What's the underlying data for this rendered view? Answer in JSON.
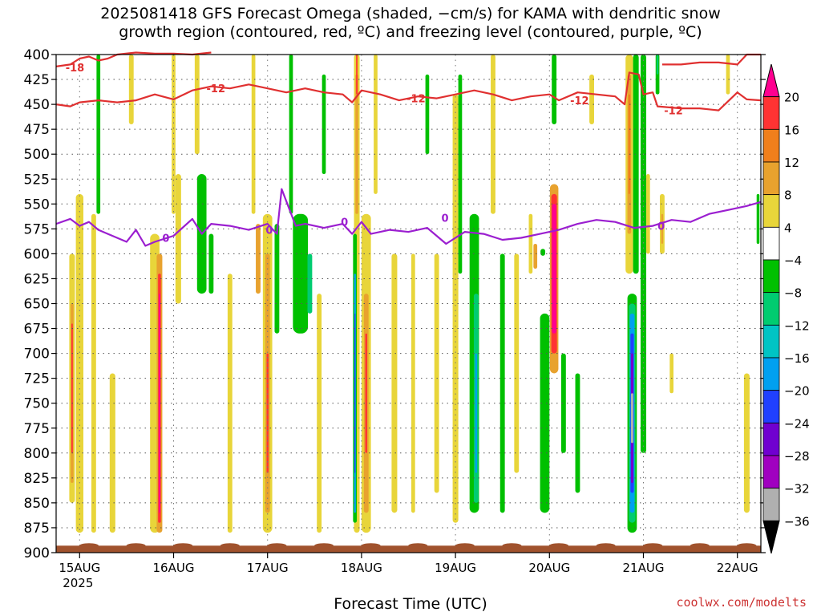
{
  "title": {
    "line1": "2025081418 GFS Forecast Omega (shaded, −cm/s) for KAMA with dendritic snow",
    "line2": "growth region (contoured, red, ºC) and freezing level (contoured, purple, ºC)"
  },
  "credit": "coolwx.com/modelts",
  "chart_data": {
    "type": "heatmap",
    "xlabel": "Forecast Time (UTC)",
    "ylabel": "",
    "x_ticks": [
      {
        "day": 15,
        "label": "15AUG",
        "sublabel": "2025"
      },
      {
        "day": 16,
        "label": "16AUG",
        "sublabel": ""
      },
      {
        "day": 17,
        "label": "17AUG",
        "sublabel": ""
      },
      {
        "day": 18,
        "label": "18AUG",
        "sublabel": ""
      },
      {
        "day": 19,
        "label": "19AUG",
        "sublabel": ""
      },
      {
        "day": 20,
        "label": "20AUG",
        "sublabel": ""
      },
      {
        "day": 21,
        "label": "21AUG",
        "sublabel": ""
      },
      {
        "day": 22,
        "label": "22AUG",
        "sublabel": ""
      }
    ],
    "xlim_days": [
      14.75,
      22.25
    ],
    "y_ticks": [
      400,
      425,
      450,
      475,
      500,
      525,
      550,
      575,
      600,
      625,
      650,
      675,
      700,
      725,
      750,
      775,
      800,
      825,
      850,
      875,
      900
    ],
    "ylim": [
      400,
      900
    ],
    "colorbar": {
      "labels": [
        "20",
        "16",
        "12",
        "8",
        "4",
        "−4",
        "−8",
        "−12",
        "−16",
        "−20",
        "−24",
        "−28",
        "−32",
        "−36"
      ],
      "segments": [
        "#ff0090",
        "#ff3333",
        "#f07f1c",
        "#e8a22e",
        "#e8d53a",
        "#ffffff",
        "#00c000",
        "#00cc70",
        "#00c4c4",
        "#00a0f0",
        "#2040ff",
        "#7000d0",
        "#a000c0",
        "#b0b0b0",
        "#000000"
      ]
    },
    "shading": [
      {
        "d": 15.0,
        "p1": 540,
        "p2": 880,
        "w": 0.08,
        "c": "#e8d53a"
      },
      {
        "d": 14.92,
        "p1": 600,
        "p2": 850,
        "w": 0.06,
        "c": "#e8d53a"
      },
      {
        "d": 14.92,
        "p1": 650,
        "p2": 830,
        "w": 0.03,
        "c": "#e8a22e"
      },
      {
        "d": 14.92,
        "p1": 670,
        "p2": 800,
        "w": 0.015,
        "c": "#ff3333"
      },
      {
        "d": 15.15,
        "p1": 560,
        "p2": 880,
        "w": 0.05,
        "c": "#e8d53a"
      },
      {
        "d": 15.35,
        "p1": 720,
        "p2": 880,
        "w": 0.06,
        "c": "#e8d53a"
      },
      {
        "d": 15.2,
        "p1": 400,
        "p2": 560,
        "w": 0.04,
        "c": "#00c000"
      },
      {
        "d": 15.55,
        "p1": 400,
        "p2": 470,
        "w": 0.05,
        "c": "#e8d53a"
      },
      {
        "d": 15.8,
        "p1": 580,
        "p2": 880,
        "w": 0.1,
        "c": "#e8d53a"
      },
      {
        "d": 15.85,
        "p1": 600,
        "p2": 880,
        "w": 0.06,
        "c": "#e8a22e"
      },
      {
        "d": 15.85,
        "p1": 620,
        "p2": 870,
        "w": 0.03,
        "c": "#ff3333"
      },
      {
        "d": 15.85,
        "p1": 640,
        "p2": 860,
        "w": 0.015,
        "c": "#ff0090"
      },
      {
        "d": 16.05,
        "p1": 520,
        "p2": 650,
        "w": 0.06,
        "c": "#e8d53a"
      },
      {
        "d": 16.3,
        "p1": 520,
        "p2": 640,
        "w": 0.1,
        "c": "#00c000"
      },
      {
        "d": 16.4,
        "p1": 580,
        "p2": 640,
        "w": 0.05,
        "c": "#00c000"
      },
      {
        "d": 16.25,
        "p1": 400,
        "p2": 500,
        "w": 0.05,
        "c": "#e8d53a"
      },
      {
        "d": 16.0,
        "p1": 400,
        "p2": 560,
        "w": 0.04,
        "c": "#e8d53a"
      },
      {
        "d": 16.6,
        "p1": 620,
        "p2": 880,
        "w": 0.05,
        "c": "#e8d53a"
      },
      {
        "d": 16.85,
        "p1": 400,
        "p2": 560,
        "w": 0.04,
        "c": "#e8d53a"
      },
      {
        "d": 17.0,
        "p1": 560,
        "p2": 880,
        "w": 0.1,
        "c": "#e8d53a"
      },
      {
        "d": 17.0,
        "p1": 600,
        "p2": 860,
        "w": 0.05,
        "c": "#e8a22e"
      },
      {
        "d": 17.0,
        "p1": 700,
        "p2": 820,
        "w": 0.02,
        "c": "#ff3333"
      },
      {
        "d": 16.9,
        "p1": 570,
        "p2": 640,
        "w": 0.05,
        "c": "#e8a22e"
      },
      {
        "d": 17.1,
        "p1": 570,
        "p2": 680,
        "w": 0.05,
        "c": "#00c000"
      },
      {
        "d": 17.25,
        "p1": 400,
        "p2": 560,
        "w": 0.04,
        "c": "#00c000"
      },
      {
        "d": 17.35,
        "p1": 560,
        "p2": 680,
        "w": 0.16,
        "c": "#00c000"
      },
      {
        "d": 17.45,
        "p1": 600,
        "p2": 660,
        "w": 0.05,
        "c": "#00cc70"
      },
      {
        "d": 17.6,
        "p1": 420,
        "p2": 520,
        "w": 0.04,
        "c": "#00c000"
      },
      {
        "d": 17.55,
        "p1": 640,
        "p2": 880,
        "w": 0.05,
        "c": "#e8d53a"
      },
      {
        "d": 17.95,
        "p1": 400,
        "p2": 880,
        "w": 0.06,
        "c": "#e8d53a"
      },
      {
        "d": 17.95,
        "p1": 420,
        "p2": 560,
        "w": 0.03,
        "c": "#e8a22e"
      },
      {
        "d": 17.95,
        "p1": 400,
        "p2": 440,
        "w": 0.015,
        "c": "#ff3333"
      },
      {
        "d": 17.93,
        "p1": 580,
        "p2": 870,
        "w": 0.04,
        "c": "#00c000"
      },
      {
        "d": 17.93,
        "p1": 620,
        "p2": 860,
        "w": 0.02,
        "c": "#00a0f0"
      },
      {
        "d": 17.93,
        "p1": 660,
        "p2": 820,
        "w": 0.01,
        "c": "#2040ff"
      },
      {
        "d": 18.05,
        "p1": 560,
        "p2": 880,
        "w": 0.1,
        "c": "#e8d53a"
      },
      {
        "d": 18.05,
        "p1": 640,
        "p2": 860,
        "w": 0.05,
        "c": "#e8a22e"
      },
      {
        "d": 18.05,
        "p1": 680,
        "p2": 800,
        "w": 0.02,
        "c": "#ff3333"
      },
      {
        "d": 18.15,
        "p1": 400,
        "p2": 540,
        "w": 0.04,
        "c": "#e8d53a"
      },
      {
        "d": 18.35,
        "p1": 600,
        "p2": 860,
        "w": 0.06,
        "c": "#e8d53a"
      },
      {
        "d": 18.55,
        "p1": 600,
        "p2": 860,
        "w": 0.04,
        "c": "#e8d53a"
      },
      {
        "d": 18.7,
        "p1": 420,
        "p2": 500,
        "w": 0.04,
        "c": "#00c000"
      },
      {
        "d": 18.8,
        "p1": 600,
        "p2": 840,
        "w": 0.05,
        "c": "#e8d53a"
      },
      {
        "d": 19.0,
        "p1": 440,
        "p2": 870,
        "w": 0.06,
        "c": "#e8d53a"
      },
      {
        "d": 19.05,
        "p1": 420,
        "p2": 620,
        "w": 0.04,
        "c": "#00c000"
      },
      {
        "d": 19.2,
        "p1": 560,
        "p2": 860,
        "w": 0.1,
        "c": "#00c000"
      },
      {
        "d": 19.22,
        "p1": 640,
        "p2": 850,
        "w": 0.05,
        "c": "#00cc70"
      },
      {
        "d": 19.22,
        "p1": 700,
        "p2": 820,
        "w": 0.02,
        "c": "#00a0f0"
      },
      {
        "d": 19.4,
        "p1": 400,
        "p2": 560,
        "w": 0.05,
        "c": "#e8d53a"
      },
      {
        "d": 19.5,
        "p1": 600,
        "p2": 860,
        "w": 0.05,
        "c": "#00c000"
      },
      {
        "d": 19.65,
        "p1": 600,
        "p2": 820,
        "w": 0.05,
        "c": "#e8d53a"
      },
      {
        "d": 19.8,
        "p1": 560,
        "p2": 620,
        "w": 0.04,
        "c": "#e8d53a"
      },
      {
        "d": 19.95,
        "p1": 700,
        "p2": 840,
        "w": 0.06,
        "c": "#00cc70"
      },
      {
        "d": 19.95,
        "p1": 660,
        "p2": 860,
        "w": 0.1,
        "c": "#00c000"
      },
      {
        "d": 20.05,
        "p1": 400,
        "p2": 470,
        "w": 0.05,
        "c": "#00c000"
      },
      {
        "d": 20.05,
        "p1": 530,
        "p2": 720,
        "w": 0.09,
        "c": "#e8a22e"
      },
      {
        "d": 20.05,
        "p1": 540,
        "p2": 700,
        "w": 0.06,
        "c": "#ff3333"
      },
      {
        "d": 20.05,
        "p1": 550,
        "p2": 680,
        "w": 0.045,
        "c": "#ff0090"
      },
      {
        "d": 19.85,
        "p1": 590,
        "p2": 615,
        "w": 0.04,
        "c": "#e8a22e"
      },
      {
        "d": 19.93,
        "p1": 595,
        "p2": 602,
        "w": 0.05,
        "c": "#00c000"
      },
      {
        "d": 20.15,
        "p1": 700,
        "p2": 800,
        "w": 0.05,
        "c": "#00c000"
      },
      {
        "d": 20.3,
        "p1": 720,
        "p2": 840,
        "w": 0.05,
        "c": "#00c000"
      },
      {
        "d": 20.45,
        "p1": 420,
        "p2": 470,
        "w": 0.05,
        "c": "#e8d53a"
      },
      {
        "d": 20.85,
        "p1": 400,
        "p2": 620,
        "w": 0.08,
        "c": "#e8d53a"
      },
      {
        "d": 20.85,
        "p1": 420,
        "p2": 580,
        "w": 0.04,
        "c": "#e8a22e"
      },
      {
        "d": 20.85,
        "p1": 440,
        "p2": 540,
        "w": 0.02,
        "c": "#f07f1c"
      },
      {
        "d": 20.92,
        "p1": 400,
        "p2": 620,
        "w": 0.06,
        "c": "#00c000"
      },
      {
        "d": 20.88,
        "p1": 640,
        "p2": 880,
        "w": 0.1,
        "c": "#00c000"
      },
      {
        "d": 20.88,
        "p1": 650,
        "p2": 870,
        "w": 0.07,
        "c": "#00cc70"
      },
      {
        "d": 20.88,
        "p1": 660,
        "p2": 860,
        "w": 0.05,
        "c": "#00a0f0"
      },
      {
        "d": 20.88,
        "p1": 680,
        "p2": 840,
        "w": 0.035,
        "c": "#2040ff"
      },
      {
        "d": 20.88,
        "p1": 700,
        "p2": 830,
        "w": 0.025,
        "c": "#7000d0"
      },
      {
        "d": 20.88,
        "p1": 740,
        "p2": 790,
        "w": 0.025,
        "c": "#b0b0b0"
      },
      {
        "d": 21.0,
        "p1": 400,
        "p2": 800,
        "w": 0.06,
        "c": "#00c000"
      },
      {
        "d": 21.05,
        "p1": 520,
        "p2": 600,
        "w": 0.04,
        "c": "#e8d53a"
      },
      {
        "d": 21.2,
        "p1": 540,
        "p2": 600,
        "w": 0.05,
        "c": "#e8d53a"
      },
      {
        "d": 21.2,
        "p1": 560,
        "p2": 590,
        "w": 0.02,
        "c": "#e8a22e"
      },
      {
        "d": 21.15,
        "p1": 400,
        "p2": 440,
        "w": 0.04,
        "c": "#00c000"
      },
      {
        "d": 21.15,
        "p1": 400,
        "p2": 420,
        "w": 0.02,
        "c": "#00cc70"
      },
      {
        "d": 21.3,
        "p1": 700,
        "p2": 740,
        "w": 0.04,
        "c": "#e8d53a"
      },
      {
        "d": 21.9,
        "p1": 400,
        "p2": 440,
        "w": 0.04,
        "c": "#e8d53a"
      },
      {
        "d": 22.1,
        "p1": 720,
        "p2": 860,
        "w": 0.06,
        "c": "#e8d53a"
      },
      {
        "d": 22.22,
        "p1": 540,
        "p2": 590,
        "w": 0.03,
        "c": "#00c000"
      }
    ],
    "contours": [
      {
        "name": "-18",
        "color": "#e03030",
        "label": "-18",
        "points": [
          [
            14.75,
            412
          ],
          [
            14.9,
            410
          ],
          [
            15.0,
            404
          ],
          [
            15.1,
            402
          ],
          [
            15.2,
            406
          ],
          [
            15.3,
            404
          ],
          [
            15.4,
            400
          ],
          [
            15.6,
            398
          ],
          [
            15.8,
            399
          ],
          [
            16.0,
            399
          ],
          [
            16.2,
            400
          ],
          [
            16.4,
            398
          ]
        ],
        "label_at": [
          14.85,
          413
        ]
      },
      {
        "name": "-18b",
        "color": "#e03030",
        "label": "",
        "points": [
          [
            21.2,
            410
          ],
          [
            21.4,
            410
          ],
          [
            21.6,
            408
          ],
          [
            21.8,
            408
          ],
          [
            22.0,
            410
          ],
          [
            22.1,
            400
          ],
          [
            22.25,
            400
          ]
        ],
        "label_at": null
      },
      {
        "name": "-12",
        "color": "#e03030",
        "label": "-12",
        "points": [
          [
            14.75,
            450
          ],
          [
            14.9,
            452
          ],
          [
            15.0,
            448
          ],
          [
            15.2,
            446
          ],
          [
            15.4,
            448
          ],
          [
            15.6,
            446
          ],
          [
            15.8,
            440
          ],
          [
            16.0,
            445
          ],
          [
            16.2,
            436
          ],
          [
            16.4,
            432
          ],
          [
            16.6,
            434
          ],
          [
            16.8,
            430
          ],
          [
            17.0,
            434
          ],
          [
            17.2,
            438
          ],
          [
            17.4,
            434
          ],
          [
            17.6,
            438
          ],
          [
            17.8,
            440
          ],
          [
            17.9,
            448
          ],
          [
            18.0,
            436
          ],
          [
            18.2,
            440
          ],
          [
            18.4,
            446
          ],
          [
            18.6,
            442
          ],
          [
            18.8,
            444
          ],
          [
            19.0,
            440
          ],
          [
            19.2,
            436
          ],
          [
            19.4,
            440
          ],
          [
            19.6,
            446
          ],
          [
            19.8,
            442
          ],
          [
            20.0,
            440
          ],
          [
            20.1,
            446
          ],
          [
            20.3,
            438
          ],
          [
            20.5,
            440
          ],
          [
            20.7,
            442
          ],
          [
            20.8,
            450
          ],
          [
            20.85,
            418
          ],
          [
            20.95,
            420
          ],
          [
            21.0,
            440
          ],
          [
            21.1,
            438
          ],
          [
            21.15,
            452
          ],
          [
            21.4,
            454
          ],
          [
            21.6,
            454
          ],
          [
            21.8,
            456
          ],
          [
            22.0,
            438
          ],
          [
            22.1,
            445
          ],
          [
            22.25,
            446
          ]
        ],
        "label_at": [
          16.35,
          434
        ]
      },
      {
        "name": "0",
        "color": "#9b1fd0",
        "label": "0",
        "points": [
          [
            14.75,
            570
          ],
          [
            14.9,
            565
          ],
          [
            15.0,
            572
          ],
          [
            15.1,
            568
          ],
          [
            15.2,
            576
          ],
          [
            15.3,
            580
          ],
          [
            15.5,
            588
          ],
          [
            15.6,
            576
          ],
          [
            15.7,
            592
          ],
          [
            15.8,
            588
          ],
          [
            16.0,
            582
          ],
          [
            16.2,
            565
          ],
          [
            16.3,
            580
          ],
          [
            16.4,
            570
          ],
          [
            16.6,
            572
          ],
          [
            16.8,
            576
          ],
          [
            17.0,
            570
          ],
          [
            17.1,
            580
          ],
          [
            17.15,
            535
          ],
          [
            17.3,
            572
          ],
          [
            17.4,
            570
          ],
          [
            17.6,
            574
          ],
          [
            17.8,
            570
          ],
          [
            17.9,
            580
          ],
          [
            18.0,
            568
          ],
          [
            18.1,
            580
          ],
          [
            18.3,
            576
          ],
          [
            18.5,
            578
          ],
          [
            18.7,
            574
          ],
          [
            18.9,
            590
          ],
          [
            19.1,
            578
          ],
          [
            19.3,
            580
          ],
          [
            19.5,
            586
          ],
          [
            19.7,
            584
          ],
          [
            19.9,
            580
          ],
          [
            20.1,
            576
          ],
          [
            20.3,
            570
          ],
          [
            20.5,
            566
          ],
          [
            20.7,
            568
          ],
          [
            20.9,
            574
          ],
          [
            21.1,
            572
          ],
          [
            21.3,
            566
          ],
          [
            21.5,
            568
          ],
          [
            21.7,
            560
          ],
          [
            21.9,
            556
          ],
          [
            22.1,
            552
          ],
          [
            22.25,
            548
          ]
        ],
        "label_at": [
          15.88,
          584
        ]
      }
    ],
    "contour_labels": [
      {
        "color": "#e03030",
        "text": "-12",
        "at": [
          18.48,
          444
        ]
      },
      {
        "color": "#e03030",
        "text": "-12",
        "at": [
          20.22,
          446
        ]
      },
      {
        "color": "#e03030",
        "text": "-12",
        "at": [
          21.22,
          456
        ]
      },
      {
        "color": "#9b1fd0",
        "text": "0",
        "at": [
          16.98,
          576
        ]
      },
      {
        "color": "#9b1fd0",
        "text": "0",
        "at": [
          17.78,
          568
        ]
      },
      {
        "color": "#9b1fd0",
        "text": "0",
        "at": [
          18.85,
          564
        ]
      },
      {
        "color": "#9b1fd0",
        "text": "0",
        "at": [
          21.15,
          572
        ]
      }
    ]
  }
}
